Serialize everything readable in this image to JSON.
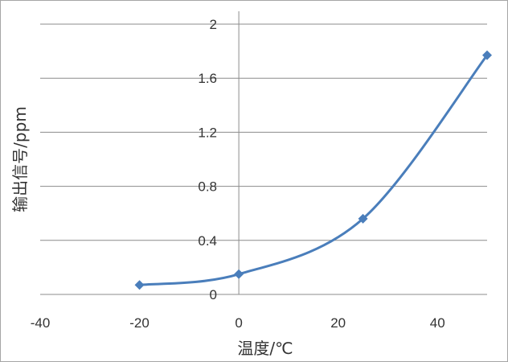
{
  "chart_data": {
    "type": "scatter",
    "title": "",
    "xlabel": "温度/℃",
    "ylabel": "输出信号/ppm",
    "xlim": [
      -40,
      50
    ],
    "ylim": [
      0,
      2
    ],
    "x_ticks": [
      -40,
      -20,
      0,
      20,
      40
    ],
    "x_tick_labels": [
      "-40",
      "-20",
      "0",
      "20",
      "40"
    ],
    "y_ticks": [
      0,
      0.4,
      0.8,
      1.2,
      1.6,
      2
    ],
    "y_tick_labels": [
      "0",
      "0.4",
      "0.8",
      "1.2",
      "1.6",
      "2"
    ],
    "grid": "horizontal",
    "legend": "none",
    "smooth": true,
    "marker": "diamond",
    "color": "#4a7ebb",
    "series": [
      {
        "x": [
          -20,
          0,
          25,
          50
        ],
        "y": [
          0.07,
          0.15,
          0.56,
          1.77
        ]
      }
    ]
  }
}
